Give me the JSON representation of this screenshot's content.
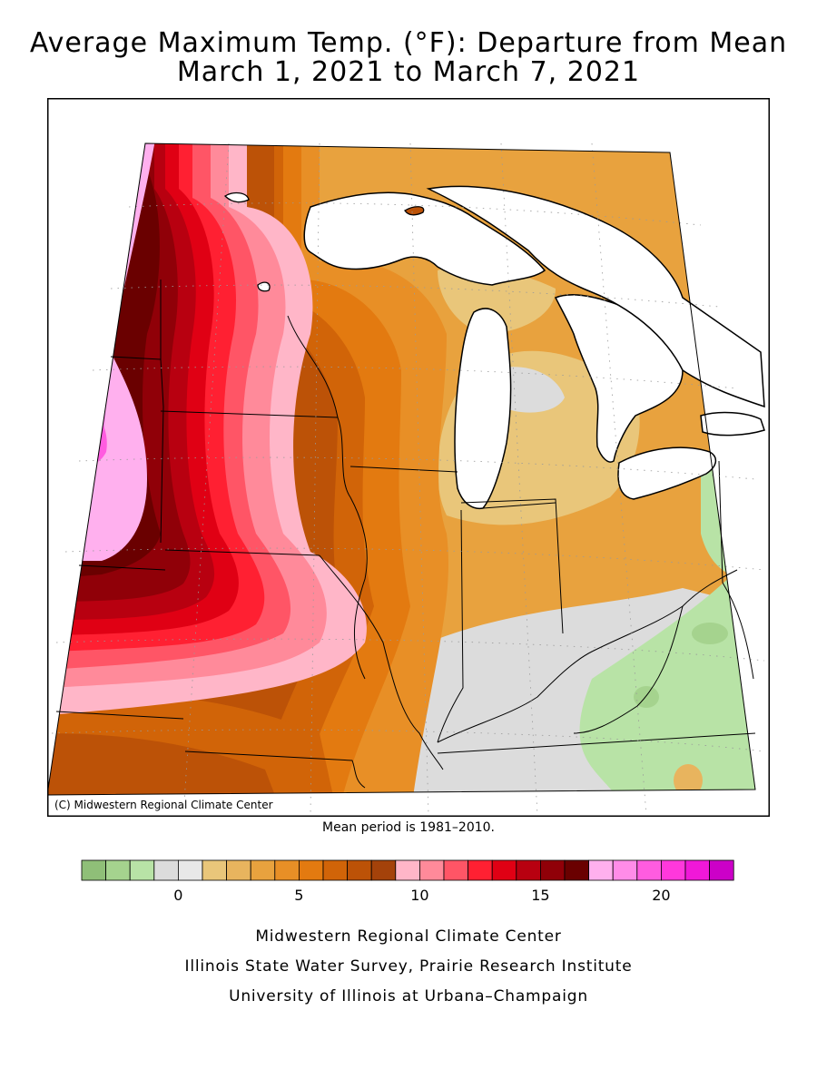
{
  "title_line1": "Average Maximum Temp. (°F): Departure from Mean",
  "title_line2": "March 1, 2021 to March 7, 2021",
  "copyright": "(C) Midwestern Regional Climate Center",
  "mean_period": "Mean period is 1981–2010.",
  "legend": {
    "colors": [
      "#8fbf78",
      "#a5d38e",
      "#b8e3a6",
      "#dcdcdc",
      "#e8e8e8",
      "#e9c67a",
      "#e8b45e",
      "#e8a23e",
      "#e88f26",
      "#e37a10",
      "#d16408",
      "#bc5207",
      "#a4420a",
      "#ffb6c8",
      "#ff8a9a",
      "#ff5566",
      "#ff2032",
      "#e00014",
      "#b80010",
      "#900008",
      "#6a0000",
      "#ffb0ee",
      "#ff8ce8",
      "#ff5ce0",
      "#ff38dc",
      "#f018d8",
      "#cc00c8"
    ],
    "tick_labels": [
      "0",
      "5",
      "10",
      "15",
      "20"
    ],
    "tick_values": [
      0,
      5,
      10,
      15,
      20
    ],
    "scale_min": -4,
    "scale_max": 23,
    "bin_size": 1
  },
  "credits": [
    "Midwestern Regional Climate Center",
    "Illinois State Water Survey, Prairie Research Institute",
    "University of Illinois at Urbana–Champaign"
  ]
}
